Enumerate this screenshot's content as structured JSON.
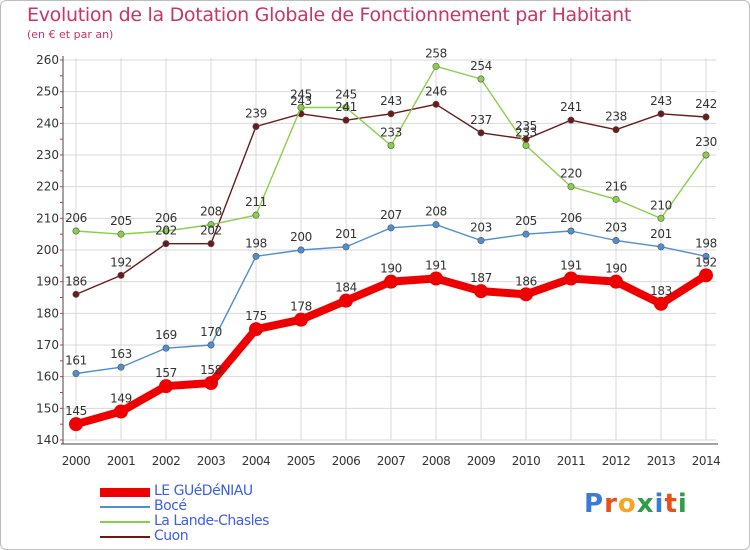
{
  "header": {
    "title": "Evolution de la Dotation Globale de Fonctionnement par Habitant",
    "subtitle": "(en € et par an)"
  },
  "brand": {
    "logo_text": "Proxiti"
  },
  "chart_data": {
    "type": "line",
    "title": "Evolution de la Dotation Globale de Fonctionnement par Habitant",
    "subtitle": "(en € et par an)",
    "xlabel": "",
    "ylabel": "",
    "x": [
      "2000",
      "2001",
      "2002",
      "2003",
      "2004",
      "2005",
      "2006",
      "2007",
      "2008",
      "2009",
      "2010",
      "2011",
      "2012",
      "2013",
      "2014"
    ],
    "ylim": [
      140,
      260
    ],
    "yticks": [
      140,
      150,
      160,
      170,
      180,
      190,
      200,
      210,
      220,
      230,
      240,
      250,
      260
    ],
    "grid": true,
    "legend_position": "bottom-left",
    "series": [
      {
        "name": "LE GUéDéNIAU",
        "color": "#ee0000",
        "values": [
          145,
          149,
          157,
          158,
          175,
          178,
          184,
          190,
          191,
          187,
          186,
          191,
          190,
          183,
          192
        ]
      },
      {
        "name": "Bocé",
        "color": "#4f8fcf",
        "values": [
          161,
          163,
          169,
          170,
          198,
          200,
          201,
          207,
          208,
          203,
          205,
          206,
          203,
          201,
          198
        ]
      },
      {
        "name": "La Lande-Chasles",
        "color": "#88d048",
        "values": [
          206,
          205,
          206,
          208,
          211,
          245,
          245,
          233,
          258,
          254,
          233,
          220,
          216,
          210,
          230
        ]
      },
      {
        "name": "Cuon",
        "color": "#6b1a1a",
        "values": [
          186,
          192,
          202,
          202,
          239,
          243,
          241,
          243,
          246,
          237,
          235,
          241,
          238,
          243,
          242
        ]
      }
    ]
  }
}
